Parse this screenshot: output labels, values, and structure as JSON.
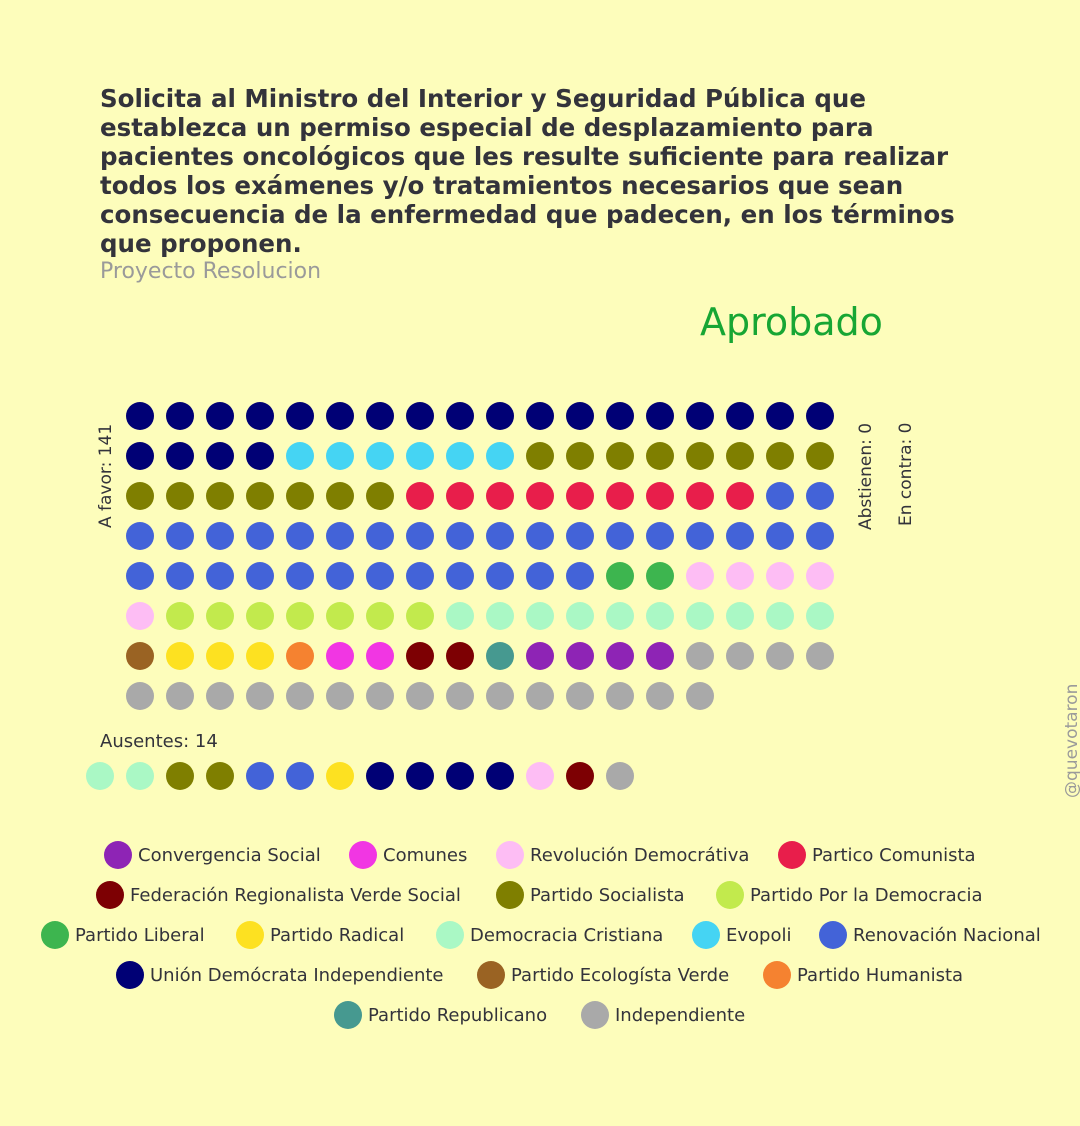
{
  "header": {
    "title": "Solicita al Ministro del Interior y Seguridad Pública que establezca un permiso especial de desplazamiento para pacientes oncológicos que les resulte suficiente para realizar todos los exámenes y/o tratamientos necesarios que sean consecuencia de la enfermedad que padecen, en los términos que proponen.",
    "subtitle": "Proyecto Resolucion",
    "status": "Aprobado"
  },
  "labels": {
    "a_favor": "A favor: 141",
    "abstienen": "Abstienen: 0",
    "en_contra": "En contra: 0",
    "ausentes": "Ausentes: 14"
  },
  "watermark": "@quevotaron",
  "colors": {
    "status": "#17a634",
    "background": "#fdfdbb"
  },
  "chart_data": {
    "type": "waffle",
    "totals": {
      "a_favor": 141,
      "abstienen": 0,
      "en_contra": 0,
      "ausentes": 14
    },
    "parties": [
      {
        "name": "Convergencia Social",
        "color": "#8e24b5"
      },
      {
        "name": "Comunes",
        "color": "#f136e3"
      },
      {
        "name": "Revolución Democrátiva",
        "color": "#fdbdf4"
      },
      {
        "name": "Partico Comunista",
        "color": "#e81e4b"
      },
      {
        "name": "Federación Regionalista Verde Social",
        "color": "#7d0003"
      },
      {
        "name": "Partido Socialista",
        "color": "#7f7f00"
      },
      {
        "name": "Partido Por la Democracia",
        "color": "#c2ea4d"
      },
      {
        "name": "Partido Liberal",
        "color": "#3db54f"
      },
      {
        "name": "Partido Radical",
        "color": "#fde121"
      },
      {
        "name": "Democracia Cristiana",
        "color": "#aaf8c5"
      },
      {
        "name": "Evopoli",
        "color": "#45d4f3"
      },
      {
        "name": "Renovación Nacional",
        "color": "#4363d8"
      },
      {
        "name": "Unión Demócrata Independiente",
        "color": "#000075"
      },
      {
        "name": "Partido Ecologísta Verde",
        "color": "#9a6323"
      },
      {
        "name": "Partido Humanista",
        "color": "#f58230"
      },
      {
        "name": "Partido Republicano",
        "color": "#469990"
      },
      {
        "name": "Independiente",
        "color": "#a9a9a9"
      }
    ],
    "a_favor_rows": [
      [
        "Unión Demócrata Independiente",
        "Unión Demócrata Independiente",
        "Unión Demócrata Independiente",
        "Unión Demócrata Independiente",
        "Unión Demócrata Independiente",
        "Unión Demócrata Independiente",
        "Unión Demócrata Independiente",
        "Unión Demócrata Independiente",
        "Unión Demócrata Independiente",
        "Unión Demócrata Independiente",
        "Unión Demócrata Independiente",
        "Unión Demócrata Independiente",
        "Unión Demócrata Independiente",
        "Unión Demócrata Independiente",
        "Unión Demócrata Independiente",
        "Unión Demócrata Independiente",
        "Unión Demócrata Independiente",
        "Unión Demócrata Independiente"
      ],
      [
        "Unión Demócrata Independiente",
        "Unión Demócrata Independiente",
        "Unión Demócrata Independiente",
        "Unión Demócrata Independiente",
        "Evopoli",
        "Evopoli",
        "Evopoli",
        "Evopoli",
        "Evopoli",
        "Evopoli",
        "Partido Socialista",
        "Partido Socialista",
        "Partido Socialista",
        "Partido Socialista",
        "Partido Socialista",
        "Partido Socialista",
        "Partido Socialista",
        "Partido Socialista"
      ],
      [
        "Partido Socialista",
        "Partido Socialista",
        "Partido Socialista",
        "Partido Socialista",
        "Partido Socialista",
        "Partido Socialista",
        "Partido Socialista",
        "Partico Comunista",
        "Partico Comunista",
        "Partico Comunista",
        "Partico Comunista",
        "Partico Comunista",
        "Partico Comunista",
        "Partico Comunista",
        "Partico Comunista",
        "Partico Comunista",
        "Renovación Nacional",
        "Renovación Nacional"
      ],
      [
        "Renovación Nacional",
        "Renovación Nacional",
        "Renovación Nacional",
        "Renovación Nacional",
        "Renovación Nacional",
        "Renovación Nacional",
        "Renovación Nacional",
        "Renovación Nacional",
        "Renovación Nacional",
        "Renovación Nacional",
        "Renovación Nacional",
        "Renovación Nacional",
        "Renovación Nacional",
        "Renovación Nacional",
        "Renovación Nacional",
        "Renovación Nacional",
        "Renovación Nacional",
        "Renovación Nacional"
      ],
      [
        "Renovación Nacional",
        "Renovación Nacional",
        "Renovación Nacional",
        "Renovación Nacional",
        "Renovación Nacional",
        "Renovación Nacional",
        "Renovación Nacional",
        "Renovación Nacional",
        "Renovación Nacional",
        "Renovación Nacional",
        "Renovación Nacional",
        "Renovación Nacional",
        "Partido Liberal",
        "Partido Liberal",
        "Revolución Democrátiva",
        "Revolución Democrátiva",
        "Revolución Democrátiva",
        "Revolución Democrátiva"
      ],
      [
        "Revolución Democrátiva",
        "Partido Por la Democracia",
        "Partido Por la Democracia",
        "Partido Por la Democracia",
        "Partido Por la Democracia",
        "Partido Por la Democracia",
        "Partido Por la Democracia",
        "Partido Por la Democracia",
        "Democracia Cristiana",
        "Democracia Cristiana",
        "Democracia Cristiana",
        "Democracia Cristiana",
        "Democracia Cristiana",
        "Democracia Cristiana",
        "Democracia Cristiana",
        "Democracia Cristiana",
        "Democracia Cristiana",
        "Democracia Cristiana"
      ],
      [
        "Partido Ecologísta Verde",
        "Partido Radical",
        "Partido Radical",
        "Partido Radical",
        "Partido Humanista",
        "Comunes",
        "Comunes",
        "Federación Regionalista Verde Social",
        "Federación Regionalista Verde Social",
        "Partido Republicano",
        "Convergencia Social",
        "Convergencia Social",
        "Convergencia Social",
        "Convergencia Social",
        "Independiente",
        "Independiente",
        "Independiente",
        "Independiente"
      ],
      [
        "Independiente",
        "Independiente",
        "Independiente",
        "Independiente",
        "Independiente",
        "Independiente",
        "Independiente",
        "Independiente",
        "Independiente",
        "Independiente",
        "Independiente",
        "Independiente",
        "Independiente",
        "Independiente",
        "Independiente"
      ]
    ],
    "ausentes_row": [
      "Democracia Cristiana",
      "Democracia Cristiana",
      "Partido Socialista",
      "Partido Socialista",
      "Renovación Nacional",
      "Renovación Nacional",
      "Partido Radical",
      "Unión Demócrata Independiente",
      "Unión Demócrata Independiente",
      "Unión Demócrata Independiente",
      "Unión Demócrata Independiente",
      "Revolución Democrátiva",
      "Federación Regionalista Verde Social",
      "Independiente"
    ]
  }
}
